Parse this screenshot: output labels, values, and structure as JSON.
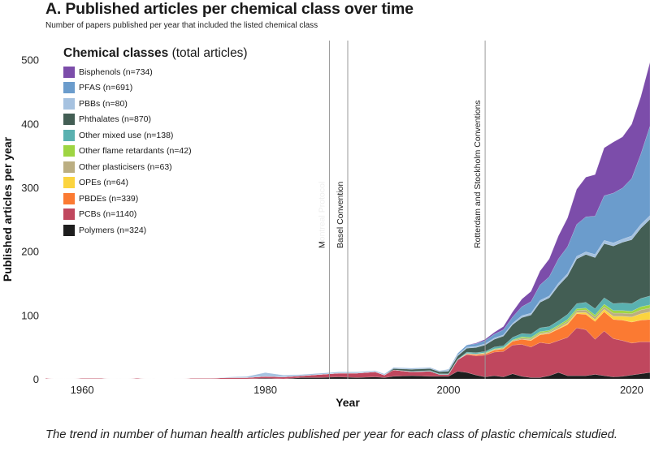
{
  "title": "A. Published articles per chemical class over time",
  "subtitle": "Number of papers published per year that included the listed chemical class",
  "caption": "The trend in number of human health articles published per year for each class of plastic chemicals studied.",
  "legend": {
    "title_bold": "Chemical classes",
    "title_rest": " (total articles)"
  },
  "chart_data": {
    "type": "area",
    "stacked": true,
    "xlabel": "Year",
    "ylabel": "Published articles per year",
    "xlim": [
      1956,
      2022
    ],
    "ylim": [
      0,
      530
    ],
    "x_ticks": [
      1960,
      1980,
      2000,
      2020
    ],
    "y_ticks": [
      0,
      100,
      200,
      300,
      400,
      500
    ],
    "legend_position": "top-left",
    "x": [
      1956,
      1958,
      1960,
      1962,
      1964,
      1966,
      1968,
      1970,
      1972,
      1974,
      1976,
      1978,
      1980,
      1982,
      1984,
      1986,
      1988,
      1990,
      1992,
      1993,
      1994,
      1996,
      1998,
      1999,
      2000,
      2001,
      2002,
      2003,
      2004,
      2005,
      2006,
      2007,
      2008,
      2009,
      2010,
      2011,
      2012,
      2013,
      2014,
      2015,
      2016,
      2017,
      2018,
      2019,
      2020,
      2021,
      2022
    ],
    "series": [
      {
        "name": "Polymers (n=324)",
        "color": "#1e1e1e",
        "values": [
          0,
          0,
          0,
          0,
          0,
          0,
          0,
          0,
          0,
          0,
          0,
          0,
          1,
          0,
          2,
          2,
          3,
          2,
          3,
          2,
          4,
          5,
          4,
          4,
          4,
          12,
          10,
          6,
          3,
          5,
          3,
          8,
          4,
          2,
          2,
          5,
          10,
          5,
          5,
          5,
          7,
          5,
          3,
          4,
          6,
          8,
          10
        ]
      },
      {
        "name": "PCBs (n=1140)",
        "color": "#c0475e",
        "values": [
          1,
          0,
          1,
          1,
          0,
          1,
          0,
          0,
          1,
          1,
          2,
          2,
          3,
          3,
          3,
          5,
          6,
          7,
          8,
          4,
          10,
          6,
          8,
          3,
          3,
          18,
          28,
          30,
          34,
          37,
          40,
          45,
          50,
          48,
          55,
          50,
          50,
          60,
          75,
          72,
          55,
          70,
          60,
          56,
          50,
          50,
          48
        ]
      },
      {
        "name": "PBDEs (n=339)",
        "color": "#fb7a32",
        "values": [
          0,
          0,
          0,
          0,
          0,
          0,
          0,
          0,
          0,
          0,
          0,
          0,
          0,
          0,
          0,
          0,
          0,
          0,
          0,
          0,
          0,
          0,
          0,
          0,
          0,
          0,
          1,
          2,
          2,
          3,
          4,
          6,
          8,
          10,
          12,
          16,
          18,
          20,
          22,
          24,
          28,
          30,
          30,
          32,
          33,
          34,
          35
        ]
      },
      {
        "name": "OPEs (n=64)",
        "color": "#fbd43f",
        "values": [
          0,
          0,
          0,
          0,
          0,
          0,
          0,
          0,
          0,
          0,
          0,
          0,
          0,
          0,
          0,
          0,
          0,
          0,
          0,
          0,
          0,
          0,
          0,
          0,
          0,
          0,
          0,
          0,
          0,
          0,
          0,
          0,
          0,
          1,
          1,
          1,
          1,
          2,
          2,
          3,
          3,
          4,
          5,
          6,
          8,
          10,
          12
        ]
      },
      {
        "name": "Other plasticisers (n=63)",
        "color": "#bbae82",
        "values": [
          0,
          0,
          0,
          0,
          0,
          0,
          0,
          0,
          0,
          0,
          0,
          0,
          0,
          0,
          0,
          0,
          0,
          0,
          0,
          0,
          0,
          0,
          0,
          0,
          0,
          0,
          1,
          1,
          1,
          1,
          1,
          1,
          2,
          2,
          2,
          2,
          3,
          3,
          3,
          4,
          4,
          4,
          5,
          5,
          5,
          6,
          6
        ]
      },
      {
        "name": "Other flame retardants (n=42)",
        "color": "#9ed542",
        "values": [
          0,
          0,
          0,
          0,
          0,
          0,
          0,
          0,
          0,
          0,
          0,
          0,
          0,
          0,
          0,
          0,
          0,
          0,
          0,
          0,
          0,
          0,
          0,
          0,
          0,
          0,
          0,
          0,
          1,
          1,
          1,
          1,
          2,
          2,
          2,
          2,
          2,
          3,
          3,
          3,
          3,
          4,
          4,
          4,
          4,
          5,
          5
        ]
      },
      {
        "name": "Other mixed use (n=138)",
        "color": "#5ab1b0",
        "values": [
          0,
          0,
          0,
          0,
          0,
          0,
          0,
          0,
          0,
          0,
          0,
          0,
          0,
          0,
          0,
          0,
          0,
          0,
          0,
          0,
          0,
          1,
          1,
          1,
          1,
          1,
          2,
          2,
          2,
          3,
          3,
          4,
          5,
          5,
          6,
          6,
          7,
          8,
          8,
          9,
          10,
          10,
          11,
          12,
          12,
          13,
          14
        ]
      },
      {
        "name": "Phthalates (n=870)",
        "color": "#435e54",
        "values": [
          0,
          0,
          0,
          0,
          0,
          0,
          0,
          0,
          0,
          0,
          0,
          0,
          0,
          0,
          0,
          0,
          0,
          0,
          0,
          0,
          2,
          3,
          3,
          3,
          4,
          5,
          6,
          8,
          10,
          12,
          15,
          20,
          25,
          30,
          40,
          45,
          55,
          60,
          70,
          75,
          80,
          85,
          90,
          95,
          100,
          110,
          120
        ]
      },
      {
        "name": "PBBs (n=80)",
        "color": "#a6c2e0",
        "values": [
          0,
          0,
          0,
          0,
          0,
          0,
          0,
          0,
          0,
          0,
          1,
          2,
          6,
          3,
          2,
          2,
          2,
          2,
          2,
          2,
          2,
          2,
          2,
          2,
          2,
          2,
          2,
          2,
          2,
          2,
          2,
          2,
          3,
          3,
          3,
          3,
          4,
          4,
          4,
          4,
          5,
          5,
          5,
          5,
          6,
          6,
          6
        ]
      },
      {
        "name": "PFAS (n=691)",
        "color": "#6b9ccc",
        "values": [
          0,
          0,
          0,
          0,
          0,
          0,
          0,
          0,
          0,
          0,
          0,
          0,
          0,
          0,
          0,
          0,
          0,
          0,
          0,
          0,
          0,
          0,
          0,
          0,
          1,
          2,
          3,
          4,
          5,
          6,
          8,
          10,
          14,
          18,
          24,
          30,
          38,
          42,
          50,
          55,
          60,
          70,
          78,
          80,
          90,
          110,
          140
        ]
      },
      {
        "name": "Bisphenols (n=734)",
        "color": "#7c4daa",
        "values": [
          0,
          0,
          0,
          0,
          0,
          0,
          0,
          0,
          0,
          0,
          0,
          0,
          0,
          0,
          0,
          0,
          0,
          0,
          0,
          0,
          0,
          0,
          0,
          0,
          0,
          0,
          0,
          1,
          2,
          3,
          5,
          8,
          12,
          16,
          22,
          28,
          36,
          45,
          55,
          62,
          65,
          75,
          80,
          80,
          85,
          90,
          100
        ]
      }
    ],
    "events": [
      {
        "label": "Montreal Protocol",
        "x": 1987
      },
      {
        "label": "Basel Convention",
        "x": 1989
      },
      {
        "label": "Rotterdam and Stockholm Conventions",
        "x": 2004
      }
    ]
  }
}
